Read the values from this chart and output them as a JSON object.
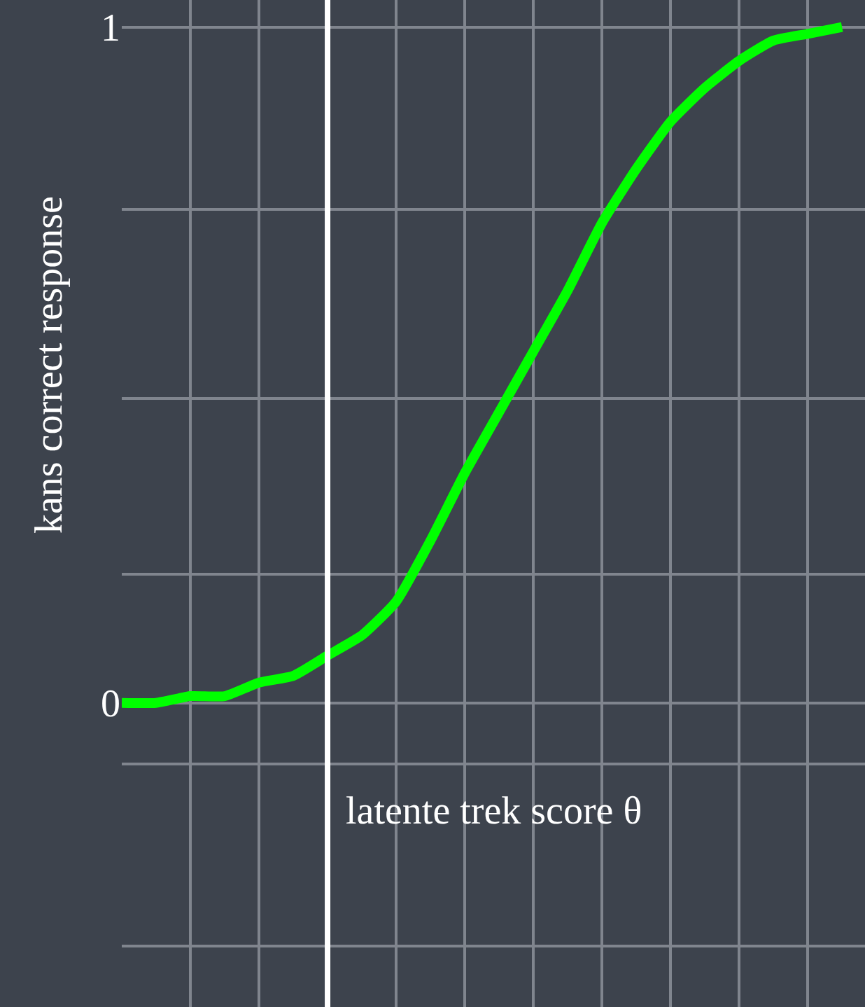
{
  "chart_data": {
    "type": "line",
    "xlabel": "latente trek score θ",
    "ylabel": "kans correct response",
    "categories": [
      null,
      null,
      null,
      null,
      null,
      null,
      null,
      null,
      null,
      null,
      null,
      null,
      null,
      null,
      null,
      null,
      null,
      null,
      null,
      null,
      null,
      null
    ],
    "series": [
      {
        "color": "#00ff00",
        "values": [
          0,
          0,
          0.01,
          0.01,
          0.03,
          0.04,
          0.07,
          0.1,
          0.15,
          0.24,
          0.34,
          0.43,
          0.52,
          0.61,
          0.71,
          0.79,
          0.86,
          0.91,
          0.95,
          0.98,
          0.99,
          1
        ]
      }
    ],
    "ylim": [
      -0.45,
      1.04
    ],
    "yticks": [
      {
        "value": -0.36,
        "label": null
      },
      {
        "value": -0.09,
        "label": null
      },
      0,
      {
        "value": 0.19,
        "label": null
      },
      {
        "value": 0.45,
        "label": null
      },
      {
        "value": 0.73,
        "label": null
      },
      1
    ],
    "grid": true,
    "tick_labels": "y"
  }
}
